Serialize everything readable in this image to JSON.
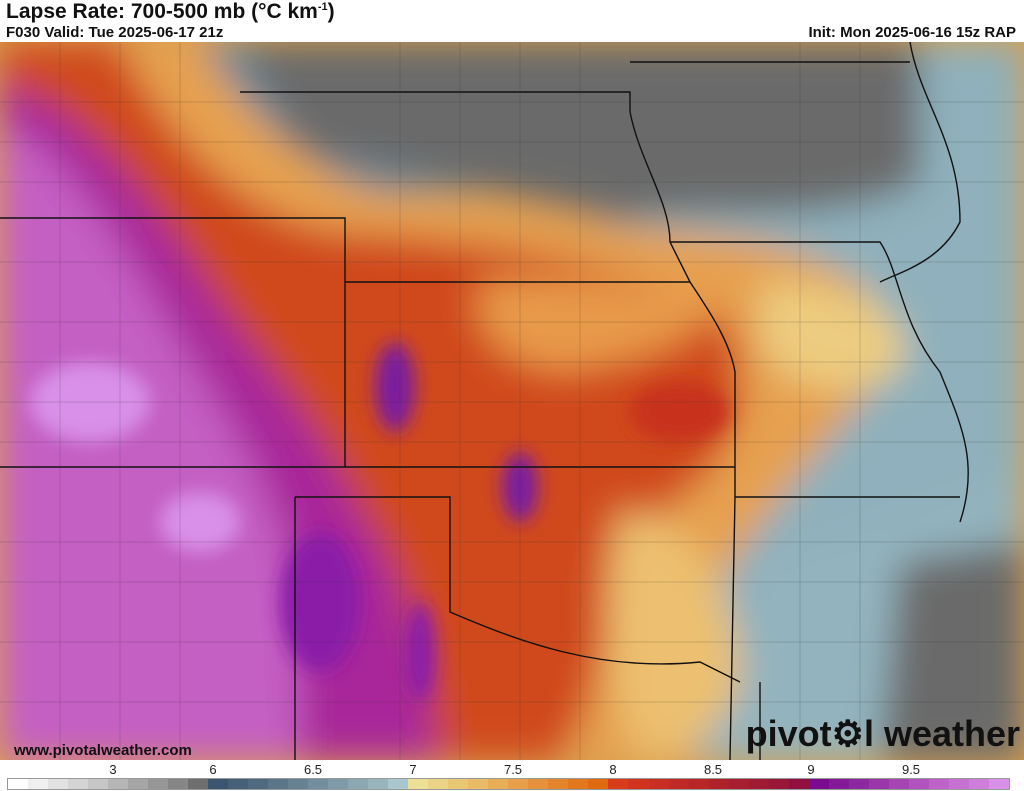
{
  "header": {
    "title": "Lapse Rate: 700-500 mb (°C km",
    "title_sup": "-1",
    "title_end": ")",
    "valid": "F030 Valid: Tue 2025-06-17 21z",
    "init": "Init: Mon 2025-06-16 15z RAP"
  },
  "footer": {
    "url": "www.pivotalweather.com",
    "brand_left": "pivot",
    "brand_icon": "gear-icon",
    "brand_right": "l weather"
  },
  "colorbar": {
    "ticks": [
      "3",
      "6",
      "6.5",
      "7",
      "7.5",
      "8",
      "8.5",
      "9",
      "9.5"
    ],
    "colors": [
      "#ffffff",
      "#f0f0f0",
      "#e2e2e2",
      "#d4d4d4",
      "#c6c6c6",
      "#b6b6b6",
      "#a6a6a6",
      "#969696",
      "#868686",
      "#6e6e6e",
      "#3a5570",
      "#445f78",
      "#4e6a80",
      "#5a7689",
      "#668292",
      "#728e9c",
      "#7f9ba7",
      "#8ba8b2",
      "#98b5bd",
      "#a8c6ce",
      "#ece095",
      "#ead483",
      "#e8c774",
      "#e8bb66",
      "#e8ae58",
      "#e8a04a",
      "#e6923b",
      "#e4852c",
      "#e2781e",
      "#e06a10",
      "#d83c18",
      "#d0341e",
      "#c82e22",
      "#c02a26",
      "#b82628",
      "#b0222a",
      "#a81e30",
      "#a01a34",
      "#981638",
      "#900e40",
      "#7a0a90",
      "#841a98",
      "#8e28a0",
      "#9a36aa",
      "#a644b4",
      "#b252be",
      "#bc62c8",
      "#c670d2",
      "#d07edc",
      "#d890e8"
    ]
  }
}
